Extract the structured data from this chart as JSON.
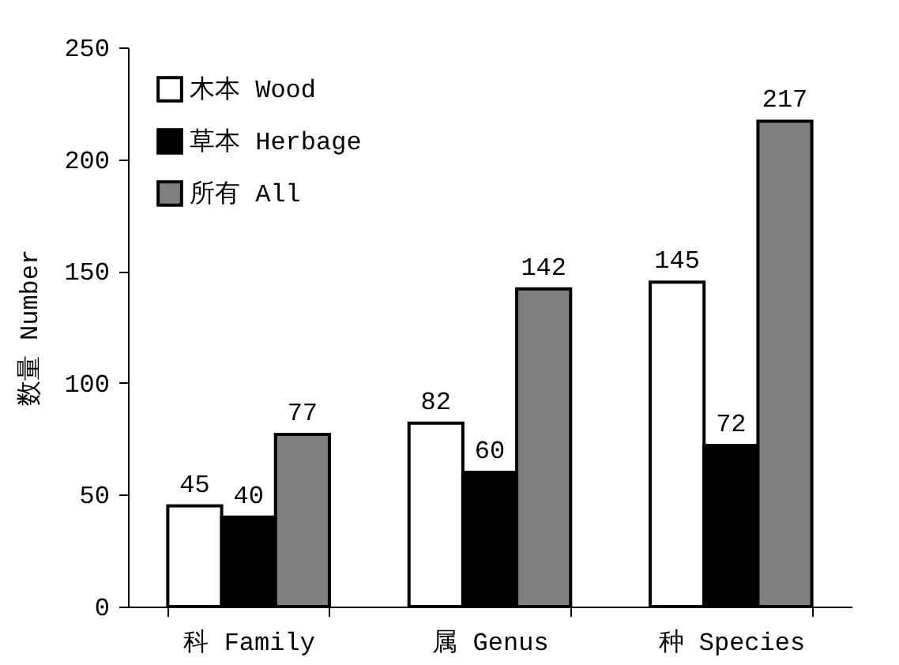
{
  "chart_data": {
    "type": "bar",
    "ylabel": "数量 Number",
    "categories": [
      "科 Family",
      "属 Genus",
      "种 Species"
    ],
    "series": [
      {
        "name": "木本 Wood",
        "color": "#ffffff",
        "values": [
          45,
          82,
          145
        ]
      },
      {
        "name": "草本 Herbage",
        "color": "#000000",
        "values": [
          40,
          60,
          72
        ]
      },
      {
        "name": "所有 All",
        "color": "#808080",
        "values": [
          77,
          142,
          217
        ]
      }
    ],
    "ylim": [
      0,
      250
    ],
    "yticks": [
      0,
      50,
      100,
      150,
      200,
      250
    ],
    "grid": false,
    "legend": "top left",
    "data_labels": true
  }
}
